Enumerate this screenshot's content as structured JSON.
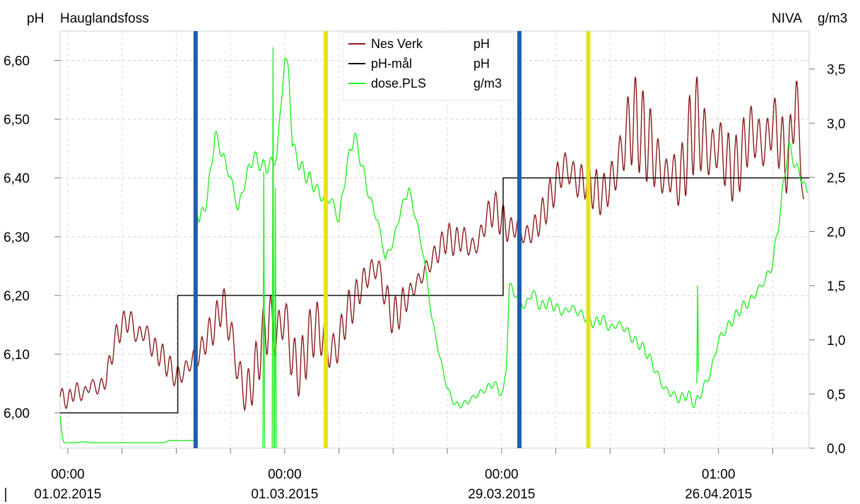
{
  "header": {
    "left_unit": "pH",
    "left_title": "Hauglandsfoss",
    "right_title": "NIVA",
    "right_unit": "g/m3"
  },
  "chart_data": {
    "type": "line",
    "title": "Hauglandsfoss",
    "x_ticks": [
      {
        "time": "00:00",
        "date": "01.02.2015",
        "day": 0
      },
      {
        "time": "00:00",
        "date": "01.03.2015",
        "day": 28
      },
      {
        "time": "00:00",
        "date": "29.03.2015",
        "day": 56
      },
      {
        "time": "01:00",
        "date": "26.04.2015",
        "day": 84
      }
    ],
    "x_range_days": [
      -1,
      95.7
    ],
    "y_left": {
      "label": "pH",
      "range": [
        5.94,
        6.65
      ],
      "ticks": [
        "6,00",
        "6,10",
        "6,20",
        "6,30",
        "6,40",
        "6,50",
        "6,60"
      ],
      "tick_values": [
        6.0,
        6.1,
        6.2,
        6.3,
        6.4,
        6.5,
        6.6
      ]
    },
    "y_right": {
      "label": "g/m3",
      "range": [
        0.0,
        3.85
      ],
      "ticks": [
        "0,0",
        "0,5",
        "1,0",
        "1,5",
        "2,0",
        "2,5",
        "3,0",
        "3,5"
      ],
      "tick_values": [
        0.0,
        0.5,
        1.0,
        1.5,
        2.0,
        2.5,
        3.0,
        3.5
      ]
    },
    "grid": true,
    "legend_position": "top-center",
    "series": [
      {
        "name": "Nes Verk",
        "unit": "pH",
        "axis": "left",
        "color": "#8b1a1a",
        "x": [
          -1,
          0,
          1,
          2,
          3,
          4,
          5,
          6,
          7,
          8,
          9,
          10,
          11,
          12,
          13,
          14,
          15,
          16,
          17,
          18,
          19,
          20,
          21,
          22,
          23,
          24,
          25,
          26,
          27,
          28,
          29,
          30,
          31,
          32,
          33,
          34,
          35,
          36,
          37,
          38,
          39,
          40,
          41,
          42,
          43,
          44,
          45,
          46,
          47,
          48,
          49,
          50,
          51,
          52,
          53,
          54,
          55,
          56,
          57,
          58,
          59,
          60,
          61,
          62,
          63,
          64,
          65,
          66,
          67,
          68,
          69,
          70,
          71,
          72,
          73,
          74,
          75,
          76,
          77,
          78,
          79,
          80,
          81,
          82,
          83,
          84,
          85,
          86,
          87,
          88,
          89,
          90,
          91,
          92,
          93,
          94,
          95
        ],
        "values": [
          6.03,
          6.02,
          6.04,
          6.03,
          6.05,
          6.04,
          6.06,
          6.12,
          6.15,
          6.16,
          6.13,
          6.14,
          6.11,
          6.1,
          6.08,
          6.06,
          6.07,
          6.09,
          6.1,
          6.13,
          6.15,
          6.19,
          6.14,
          6.07,
          6.03,
          6.06,
          6.12,
          6.16,
          6.13,
          6.17,
          6.09,
          6.07,
          6.12,
          6.15,
          6.13,
          6.1,
          6.12,
          6.17,
          6.19,
          6.22,
          6.24,
          6.25,
          6.2,
          6.16,
          6.18,
          6.2,
          6.22,
          6.24,
          6.26,
          6.28,
          6.3,
          6.29,
          6.3,
          6.28,
          6.29,
          6.33,
          6.35,
          6.33,
          6.31,
          6.32,
          6.3,
          6.31,
          6.33,
          6.36,
          6.39,
          6.42,
          6.41,
          6.39,
          6.4,
          6.38,
          6.37,
          6.39,
          6.42,
          6.47,
          6.5,
          6.48,
          6.46,
          6.43,
          6.4,
          6.41,
          6.39,
          6.45,
          6.5,
          6.47,
          6.44,
          6.46,
          6.43,
          6.41,
          6.44,
          6.48,
          6.47,
          6.45,
          6.5,
          6.46,
          6.42,
          6.55,
          6.36
        ],
        "amplitude": [
          0.012,
          0.012,
          0.012,
          0.012,
          0.012,
          0.012,
          0.015,
          0.018,
          0.018,
          0.02,
          0.02,
          0.018,
          0.018,
          0.018,
          0.018,
          0.018,
          0.018,
          0.018,
          0.018,
          0.02,
          0.025,
          0.03,
          0.035,
          0.035,
          0.035,
          0.035,
          0.04,
          0.045,
          0.045,
          0.045,
          0.045,
          0.04,
          0.04,
          0.04,
          0.04,
          0.04,
          0.035,
          0.03,
          0.025,
          0.02,
          0.02,
          0.025,
          0.03,
          0.03,
          0.025,
          0.015,
          0.012,
          0.018,
          0.02,
          0.02,
          0.02,
          0.02,
          0.02,
          0.02,
          0.02,
          0.022,
          0.025,
          0.025,
          0.02,
          0.02,
          0.02,
          0.02,
          0.022,
          0.025,
          0.028,
          0.03,
          0.03,
          0.03,
          0.03,
          0.03,
          0.03,
          0.035,
          0.045,
          0.06,
          0.07,
          0.06,
          0.06,
          0.05,
          0.04,
          0.04,
          0.04,
          0.06,
          0.07,
          0.06,
          0.05,
          0.05,
          0.05,
          0.045,
          0.045,
          0.045,
          0.045,
          0.045,
          0.045,
          0.045,
          0.045,
          0.045,
          0.02
        ]
      },
      {
        "name": "pH-mål",
        "unit": "pH",
        "axis": "left",
        "color": "#000000",
        "x": [
          -1,
          14.2,
          14.2,
          56.2,
          56.2,
          95.7
        ],
        "values": [
          6.0,
          6.0,
          6.2,
          6.2,
          6.4,
          6.4
        ]
      },
      {
        "name": "dose.PLS",
        "unit": "g/m3",
        "axis": "right",
        "color": "#22ee22",
        "x": [
          -1,
          -0.7,
          -0.5,
          1,
          2,
          3,
          12.5,
          13,
          16.5,
          16.7,
          17,
          18,
          19,
          20,
          21,
          22,
          23,
          24,
          25,
          26,
          27,
          28,
          28.5,
          29,
          30,
          31,
          32,
          33,
          34,
          35,
          36,
          37,
          38,
          39,
          40,
          41,
          42,
          43,
          44,
          45,
          46,
          47,
          48,
          49,
          50,
          51,
          52,
          53,
          54,
          55,
          56,
          56.2,
          56.6,
          57,
          58,
          59,
          60,
          61,
          62,
          63,
          64,
          65,
          66,
          67,
          68,
          69,
          70,
          71,
          72,
          73,
          74,
          75,
          76,
          77,
          78,
          79,
          80,
          81,
          82,
          83,
          84,
          85,
          86,
          87,
          88,
          89,
          90,
          91,
          92,
          93,
          94,
          95,
          95.5
        ],
        "values": [
          0.3,
          0.1,
          0.05,
          0.05,
          0.06,
          0.05,
          0.05,
          0.07,
          0.07,
          2.2,
          2.1,
          2.3,
          2.9,
          2.7,
          2.5,
          2.2,
          2.5,
          2.7,
          2.6,
          2.6,
          2.7,
          3.6,
          3.5,
          2.8,
          2.6,
          2.5,
          2.4,
          2.3,
          2.3,
          2.1,
          2.6,
          2.9,
          2.6,
          2.3,
          2.1,
          1.75,
          1.9,
          2.2,
          2.4,
          2.1,
          1.75,
          1.2,
          0.85,
          0.55,
          0.4,
          0.4,
          0.45,
          0.5,
          0.55,
          0.6,
          0.5,
          0.5,
          0.75,
          1.5,
          1.4,
          1.3,
          1.45,
          1.3,
          1.35,
          1.3,
          1.25,
          1.3,
          1.25,
          1.2,
          1.15,
          1.2,
          1.1,
          1.15,
          1.1,
          1.0,
          0.95,
          0.85,
          0.7,
          0.55,
          0.5,
          0.45,
          0.5,
          0.4,
          0.55,
          0.7,
          1.0,
          1.1,
          1.2,
          1.3,
          1.35,
          1.45,
          1.55,
          1.7,
          2.2,
          2.8,
          2.6,
          2.45,
          2.35
        ],
        "amplitude": [
          0.0,
          0.0,
          0.0,
          0.0,
          0.0,
          0.0,
          0.0,
          0.0,
          0.0,
          0.04,
          0.05,
          0.05,
          0.05,
          0.05,
          0.05,
          0.05,
          0.05,
          0.05,
          0.05,
          0.06,
          0.06,
          0.05,
          0.05,
          0.06,
          0.06,
          0.06,
          0.05,
          0.05,
          0.05,
          0.05,
          0.05,
          0.05,
          0.05,
          0.05,
          0.04,
          0.03,
          0.03,
          0.03,
          0.03,
          0.03,
          0.03,
          0.03,
          0.02,
          0.02,
          0.02,
          0.03,
          0.03,
          0.03,
          0.03,
          0.03,
          0.03,
          0.03,
          0.03,
          0.04,
          0.04,
          0.04,
          0.04,
          0.04,
          0.04,
          0.04,
          0.04,
          0.04,
          0.04,
          0.04,
          0.04,
          0.04,
          0.04,
          0.04,
          0.04,
          0.04,
          0.04,
          0.04,
          0.04,
          0.04,
          0.04,
          0.04,
          0.04,
          0.04,
          0.04,
          0.04,
          0.04,
          0.04,
          0.04,
          0.04,
          0.04,
          0.04,
          0.04,
          0.05,
          0.05,
          0.05,
          0.05,
          0.05,
          0.02
        ],
        "spikes": [
          {
            "x": 25.3,
            "values": [
              0.0,
              2.55,
              0.0
            ]
          },
          {
            "x": 26.5,
            "values": [
              0.0,
              3.7,
              0.0
            ]
          },
          {
            "x": 26.8,
            "values": [
              0.0,
              2.4,
              0.0
            ]
          },
          {
            "x": 81.3,
            "values": [
              0.6,
              1.5,
              0.7
            ]
          }
        ]
      }
    ],
    "markers": [
      {
        "x": 16.5,
        "color": "#1f5fa8"
      },
      {
        "x": 33.3,
        "color": "#e7e21c"
      },
      {
        "x": 58.3,
        "color": "#1f5fa8"
      },
      {
        "x": 67.2,
        "color": "#e7e21c"
      }
    ]
  }
}
